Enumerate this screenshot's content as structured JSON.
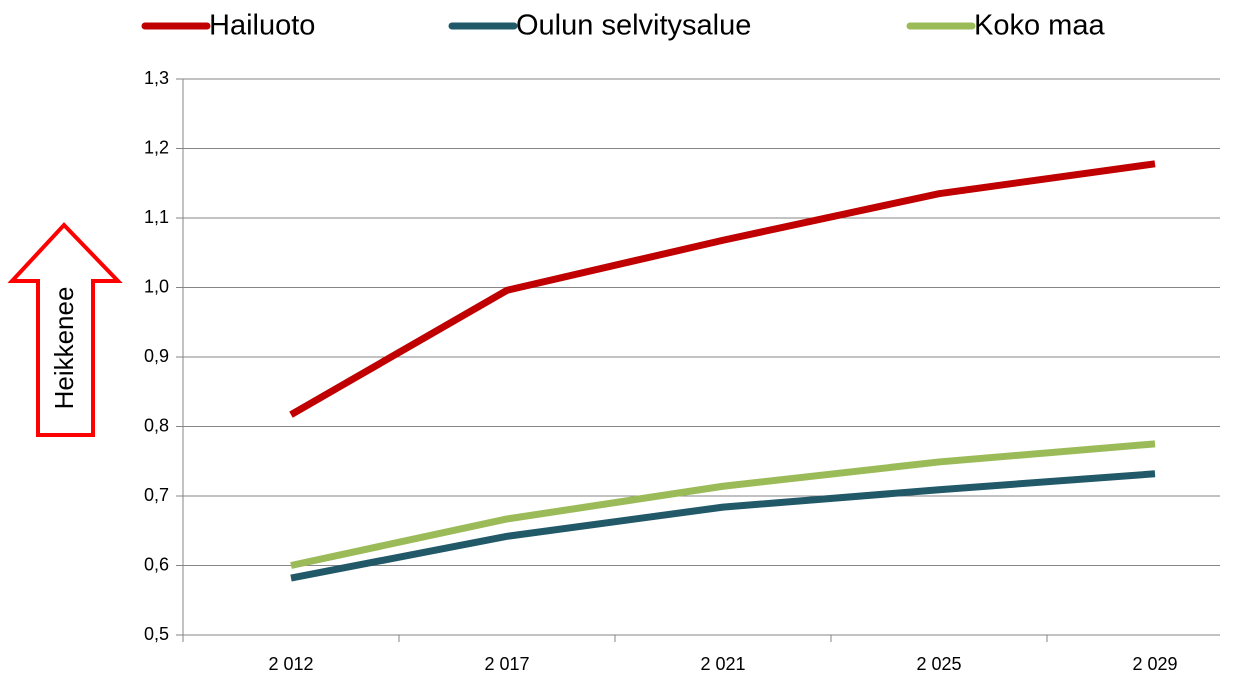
{
  "chart_data": {
    "type": "line",
    "categories": [
      "2 012",
      "2 017",
      "2 021",
      "2 025",
      "2 029"
    ],
    "series": [
      {
        "name": "Hailuoto",
        "color": "#c00000",
        "values": [
          0.817,
          0.996,
          1.068,
          1.135,
          1.178
        ]
      },
      {
        "name": "Oulun selvitysalue",
        "color": "#215968",
        "values": [
          0.582,
          0.642,
          0.684,
          0.709,
          0.732
        ]
      },
      {
        "name": "Koko maa",
        "color": "#9bbb59",
        "values": [
          0.6,
          0.667,
          0.714,
          0.749,
          0.775
        ]
      }
    ],
    "ylim": [
      0.5,
      1.3
    ],
    "yticks": [
      {
        "value": 0.5,
        "label": "0,5"
      },
      {
        "value": 0.6,
        "label": "0,6"
      },
      {
        "value": 0.7,
        "label": "0,7"
      },
      {
        "value": 0.8,
        "label": "0,8"
      },
      {
        "value": 0.9,
        "label": "0,9"
      },
      {
        "value": 1.0,
        "label": "1,0"
      },
      {
        "value": 1.1,
        "label": "1,1"
      },
      {
        "value": 1.2,
        "label": "1,2"
      },
      {
        "value": 1.3,
        "label": "1,3"
      }
    ],
    "grid": true,
    "legend": "top",
    "annotation": "Heikkenee"
  }
}
